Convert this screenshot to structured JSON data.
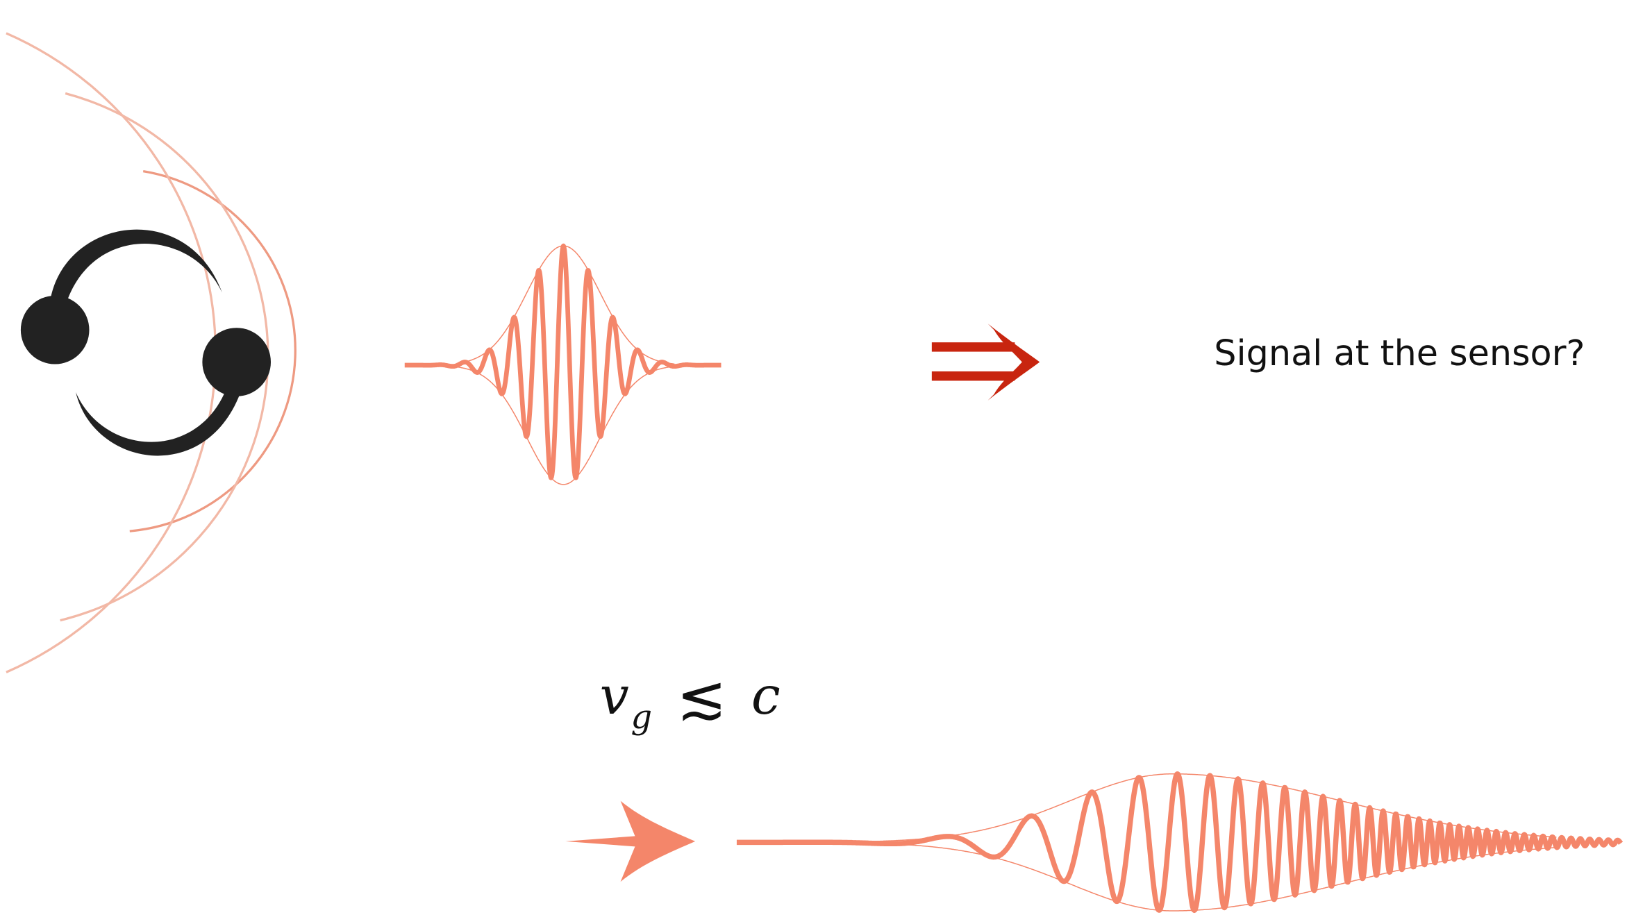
{
  "caption": "Signal at the sensor?",
  "formula": {
    "lhs": "v",
    "subscript": "g",
    "relation": "≲",
    "rhs": "c"
  }
}
